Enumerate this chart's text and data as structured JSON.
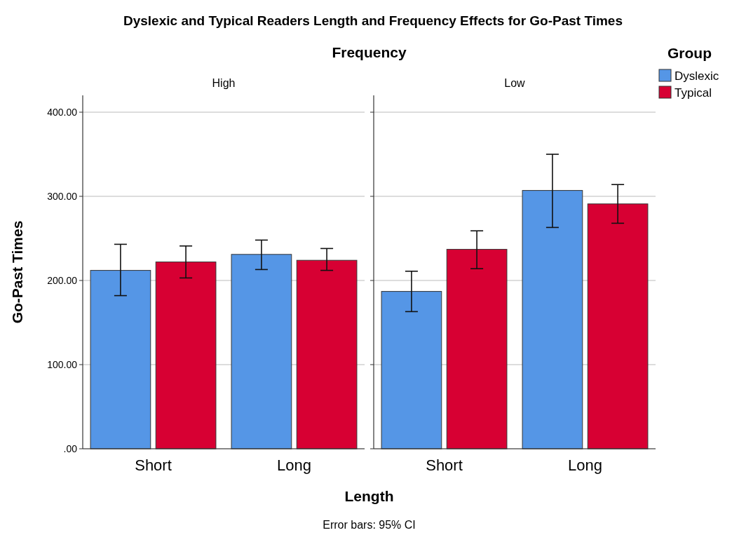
{
  "chart_data": [
    {
      "type": "bar",
      "title": "Dyslexic and Typical Readers Length and Frequency Effects for Go-Past Times",
      "subtitle": "High",
      "xlabel": "Length",
      "ylabel": "Go-Past Times",
      "annotations": [
        "Frequency",
        "Error bars: 95% CI"
      ],
      "categories": [
        "Short",
        "Long"
      ],
      "series": [
        {
          "color": "#5596e6",
          "values": [
            212,
            231
          ],
          "errors": [
            [
              182,
              243
            ],
            [
              213,
              248
            ]
          ]
        },
        {
          "color": "#d70033",
          "values": [
            222,
            224
          ],
          "errors": [
            [
              203,
              241
            ],
            [
              212,
              238
            ]
          ]
        }
      ],
      "ylim": [
        0,
        420
      ],
      "yticks": [
        {
          "value": 0,
          "label": ".00"
        },
        {
          "value": 100,
          "label": "100.00"
        },
        {
          "value": 200,
          "label": "200.00"
        },
        {
          "value": 300,
          "label": "300.00"
        },
        {
          "value": 400,
          "label": "400.00"
        }
      ],
      "grid": "y"
    },
    {
      "type": "bar",
      "subtitle": "Low",
      "legend_title": "Group",
      "legend": "right",
      "categories": [
        "Short",
        "Long"
      ],
      "series": [
        {
          "name": "Dyslexic",
          "color": "#5596e6",
          "values": [
            187,
            307
          ],
          "errors": [
            [
              163,
              211
            ],
            [
              263,
              350
            ]
          ]
        },
        {
          "name": "Typical",
          "color": "#d70033",
          "values": [
            237,
            291
          ],
          "errors": [
            [
              214,
              259
            ],
            [
              268,
              314
            ]
          ]
        }
      ],
      "ylim": [
        0,
        420
      ],
      "yticks": [
        {
          "value": 0,
          "label": null
        },
        {
          "value": 100,
          "label": null
        },
        {
          "value": 200,
          "label": null
        },
        {
          "value": 300,
          "label": null
        },
        {
          "value": 400,
          "label": null
        }
      ],
      "grid": "y",
      "tick_labels": "x"
    }
  ]
}
